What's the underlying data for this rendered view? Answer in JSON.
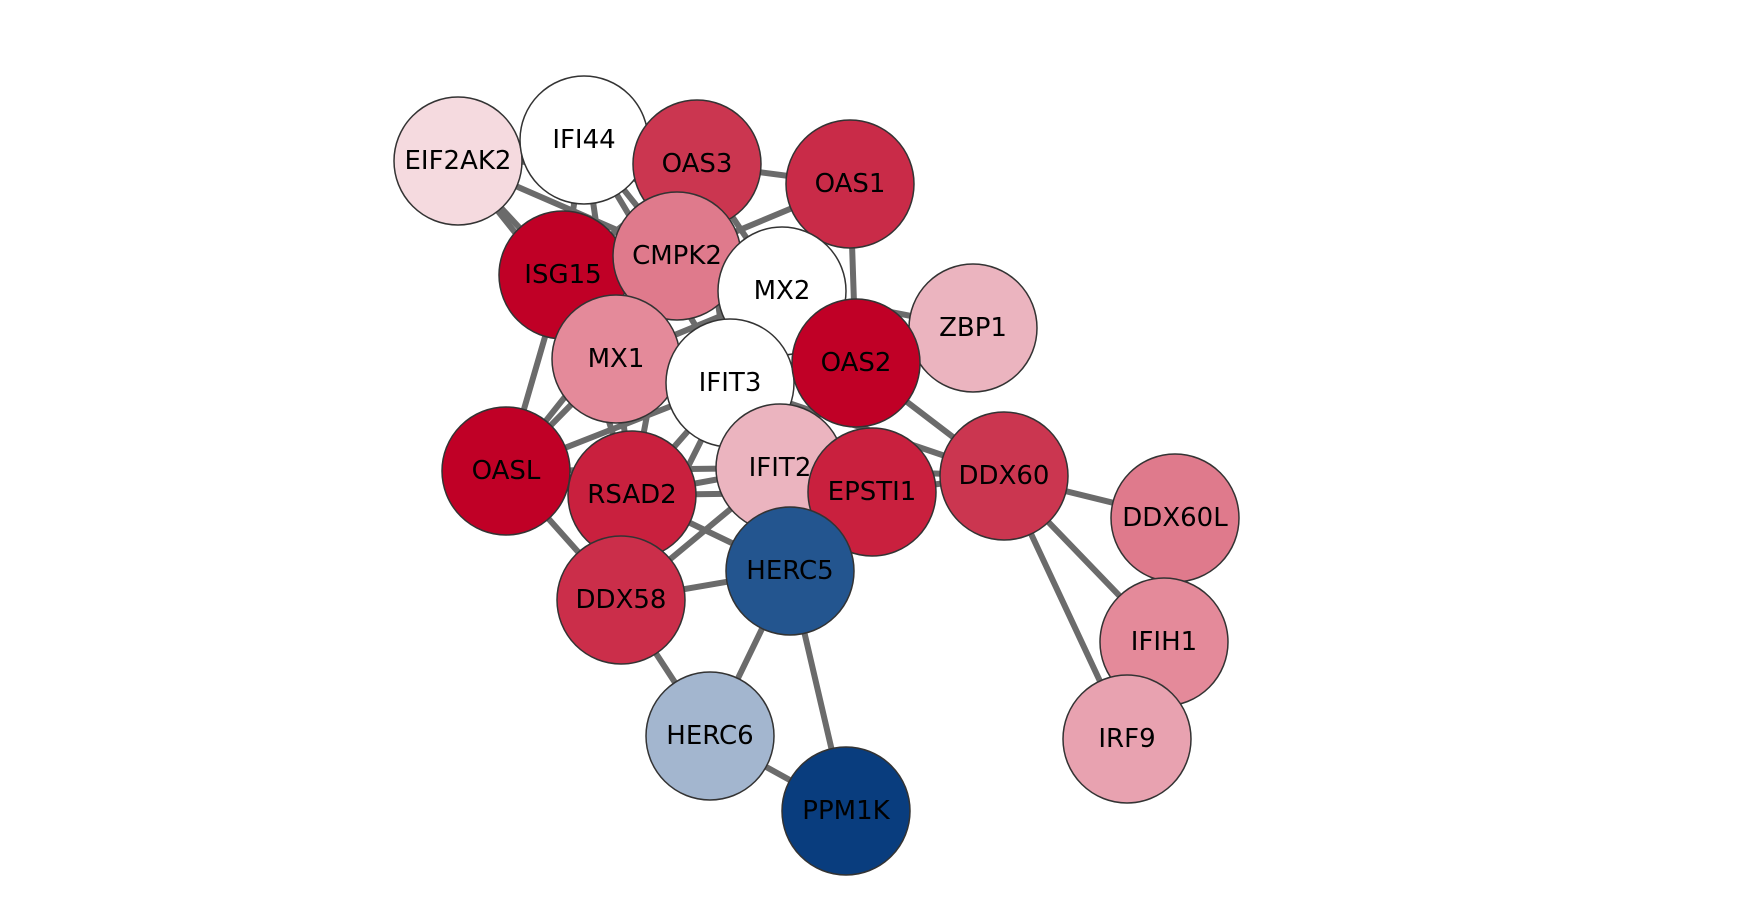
{
  "network": {
    "edge_color": "#6b6b6b",
    "nodes": [
      {
        "id": "EIF2AK2",
        "label": "EIF2AK2",
        "color": "#f5dadf"
      },
      {
        "id": "IFI44",
        "label": "IFI44",
        "color": "#ffffff"
      },
      {
        "id": "OAS3",
        "label": "OAS3",
        "color": "#cb3650"
      },
      {
        "id": "OAS1",
        "label": "OAS1",
        "color": "#c92b48"
      },
      {
        "id": "ISG15",
        "label": "ISG15",
        "color": "#c00026"
      },
      {
        "id": "CMPK2",
        "label": "CMPK2",
        "color": "#df7a8c"
      },
      {
        "id": "MX2",
        "label": "MX2",
        "color": "#ffffff"
      },
      {
        "id": "ZBP1",
        "label": "ZBP1",
        "color": "#ebb4bf"
      },
      {
        "id": "MX1",
        "label": "MX1",
        "color": "#e48a9a"
      },
      {
        "id": "IFIT3",
        "label": "IFIT3",
        "color": "#ffffff"
      },
      {
        "id": "OAS2",
        "label": "OAS2",
        "color": "#c00026"
      },
      {
        "id": "OASL",
        "label": "OASL",
        "color": "#c00026"
      },
      {
        "id": "RSAD2",
        "label": "RSAD2",
        "color": "#c9203e"
      },
      {
        "id": "IFIT2",
        "label": "IFIT2",
        "color": "#ebb4bf"
      },
      {
        "id": "EPSTI1",
        "label": "EPSTI1",
        "color": "#c9203e"
      },
      {
        "id": "DDX60",
        "label": "DDX60",
        "color": "#cb3650"
      },
      {
        "id": "DDX60L",
        "label": "DDX60L",
        "color": "#df7a8c"
      },
      {
        "id": "HERC5",
        "label": "HERC5",
        "color": "#23558f"
      },
      {
        "id": "DDX58",
        "label": "DDX58",
        "color": "#cb2e4a"
      },
      {
        "id": "IFIH1",
        "label": "IFIH1",
        "color": "#e48a9a"
      },
      {
        "id": "HERC6",
        "label": "HERC6",
        "color": "#a3b6cf"
      },
      {
        "id": "IRF9",
        "label": "IRF9",
        "color": "#e8a2b0"
      },
      {
        "id": "PPM1K",
        "label": "PPM1K",
        "color": "#093d7e"
      }
    ],
    "edges": [
      [
        "EIF2AK2",
        "ISG15"
      ],
      [
        "EIF2AK2",
        "CMPK2"
      ],
      [
        "EIF2AK2",
        "MX1"
      ],
      [
        "EIF2AK2",
        "OAS3"
      ],
      [
        "IFI44",
        "ISG15"
      ],
      [
        "IFI44",
        "MX1"
      ],
      [
        "IFI44",
        "CMPK2"
      ],
      [
        "IFI44",
        "MX2"
      ],
      [
        "IFI44",
        "IFIT3"
      ],
      [
        "IFI44",
        "OAS3"
      ],
      [
        "OAS3",
        "OAS1"
      ],
      [
        "OAS3",
        "MX2"
      ],
      [
        "OAS3",
        "MX1"
      ],
      [
        "OAS3",
        "ISG15"
      ],
      [
        "OAS3",
        "IFIT3"
      ],
      [
        "OAS1",
        "OAS2"
      ],
      [
        "OAS1",
        "MX2"
      ],
      [
        "OAS1",
        "CMPK2"
      ],
      [
        "OAS1",
        "IFIT3"
      ],
      [
        "ISG15",
        "OASL"
      ],
      [
        "ISG15",
        "MX1"
      ],
      [
        "ISG15",
        "RSAD2"
      ],
      [
        "ISG15",
        "IFIT3"
      ],
      [
        "ISG15",
        "MX2"
      ],
      [
        "CMPK2",
        "MX2"
      ],
      [
        "CMPK2",
        "RSAD2"
      ],
      [
        "CMPK2",
        "OASL"
      ],
      [
        "MX2",
        "OAS2"
      ],
      [
        "MX2",
        "ZBP1"
      ],
      [
        "MX2",
        "IFIT3"
      ],
      [
        "MX2",
        "MX1"
      ],
      [
        "OAS2",
        "DDX60"
      ],
      [
        "OAS2",
        "ZBP1"
      ],
      [
        "OAS2",
        "IFIT2"
      ],
      [
        "MX1",
        "OASL"
      ],
      [
        "MX1",
        "RSAD2"
      ],
      [
        "MX1",
        "IFIT2"
      ],
      [
        "MX1",
        "IFIT3"
      ],
      [
        "IFIT3",
        "OASL"
      ],
      [
        "IFIT3",
        "RSAD2"
      ],
      [
        "IFIT3",
        "IFIT2"
      ],
      [
        "IFIT3",
        "DDX58"
      ],
      [
        "IFIT3",
        "HERC5"
      ],
      [
        "IFIT3",
        "DDX60"
      ],
      [
        "IFIT3",
        "EPSTI1"
      ],
      [
        "OASL",
        "RSAD2"
      ],
      [
        "OASL",
        "DDX58"
      ],
      [
        "OASL",
        "IFIT2"
      ],
      [
        "RSAD2",
        "IFIT2"
      ],
      [
        "RSAD2",
        "HERC5"
      ],
      [
        "RSAD2",
        "EPSTI1"
      ],
      [
        "IFIT2",
        "EPSTI1"
      ],
      [
        "IFIT2",
        "DDX60"
      ],
      [
        "IFIT2",
        "DDX58"
      ],
      [
        "EPSTI1",
        "DDX60"
      ],
      [
        "DDX60",
        "DDX60L"
      ],
      [
        "DDX60",
        "IFIH1"
      ],
      [
        "DDX60",
        "IRF9"
      ],
      [
        "DDX60L",
        "IFIH1"
      ],
      [
        "HERC5",
        "HERC6"
      ],
      [
        "HERC5",
        "PPM1K"
      ],
      [
        "HERC5",
        "DDX58"
      ],
      [
        "DDX58",
        "HERC6"
      ],
      [
        "HERC6",
        "PPM1K"
      ],
      [
        "IFIH1",
        "IRF9"
      ]
    ]
  }
}
